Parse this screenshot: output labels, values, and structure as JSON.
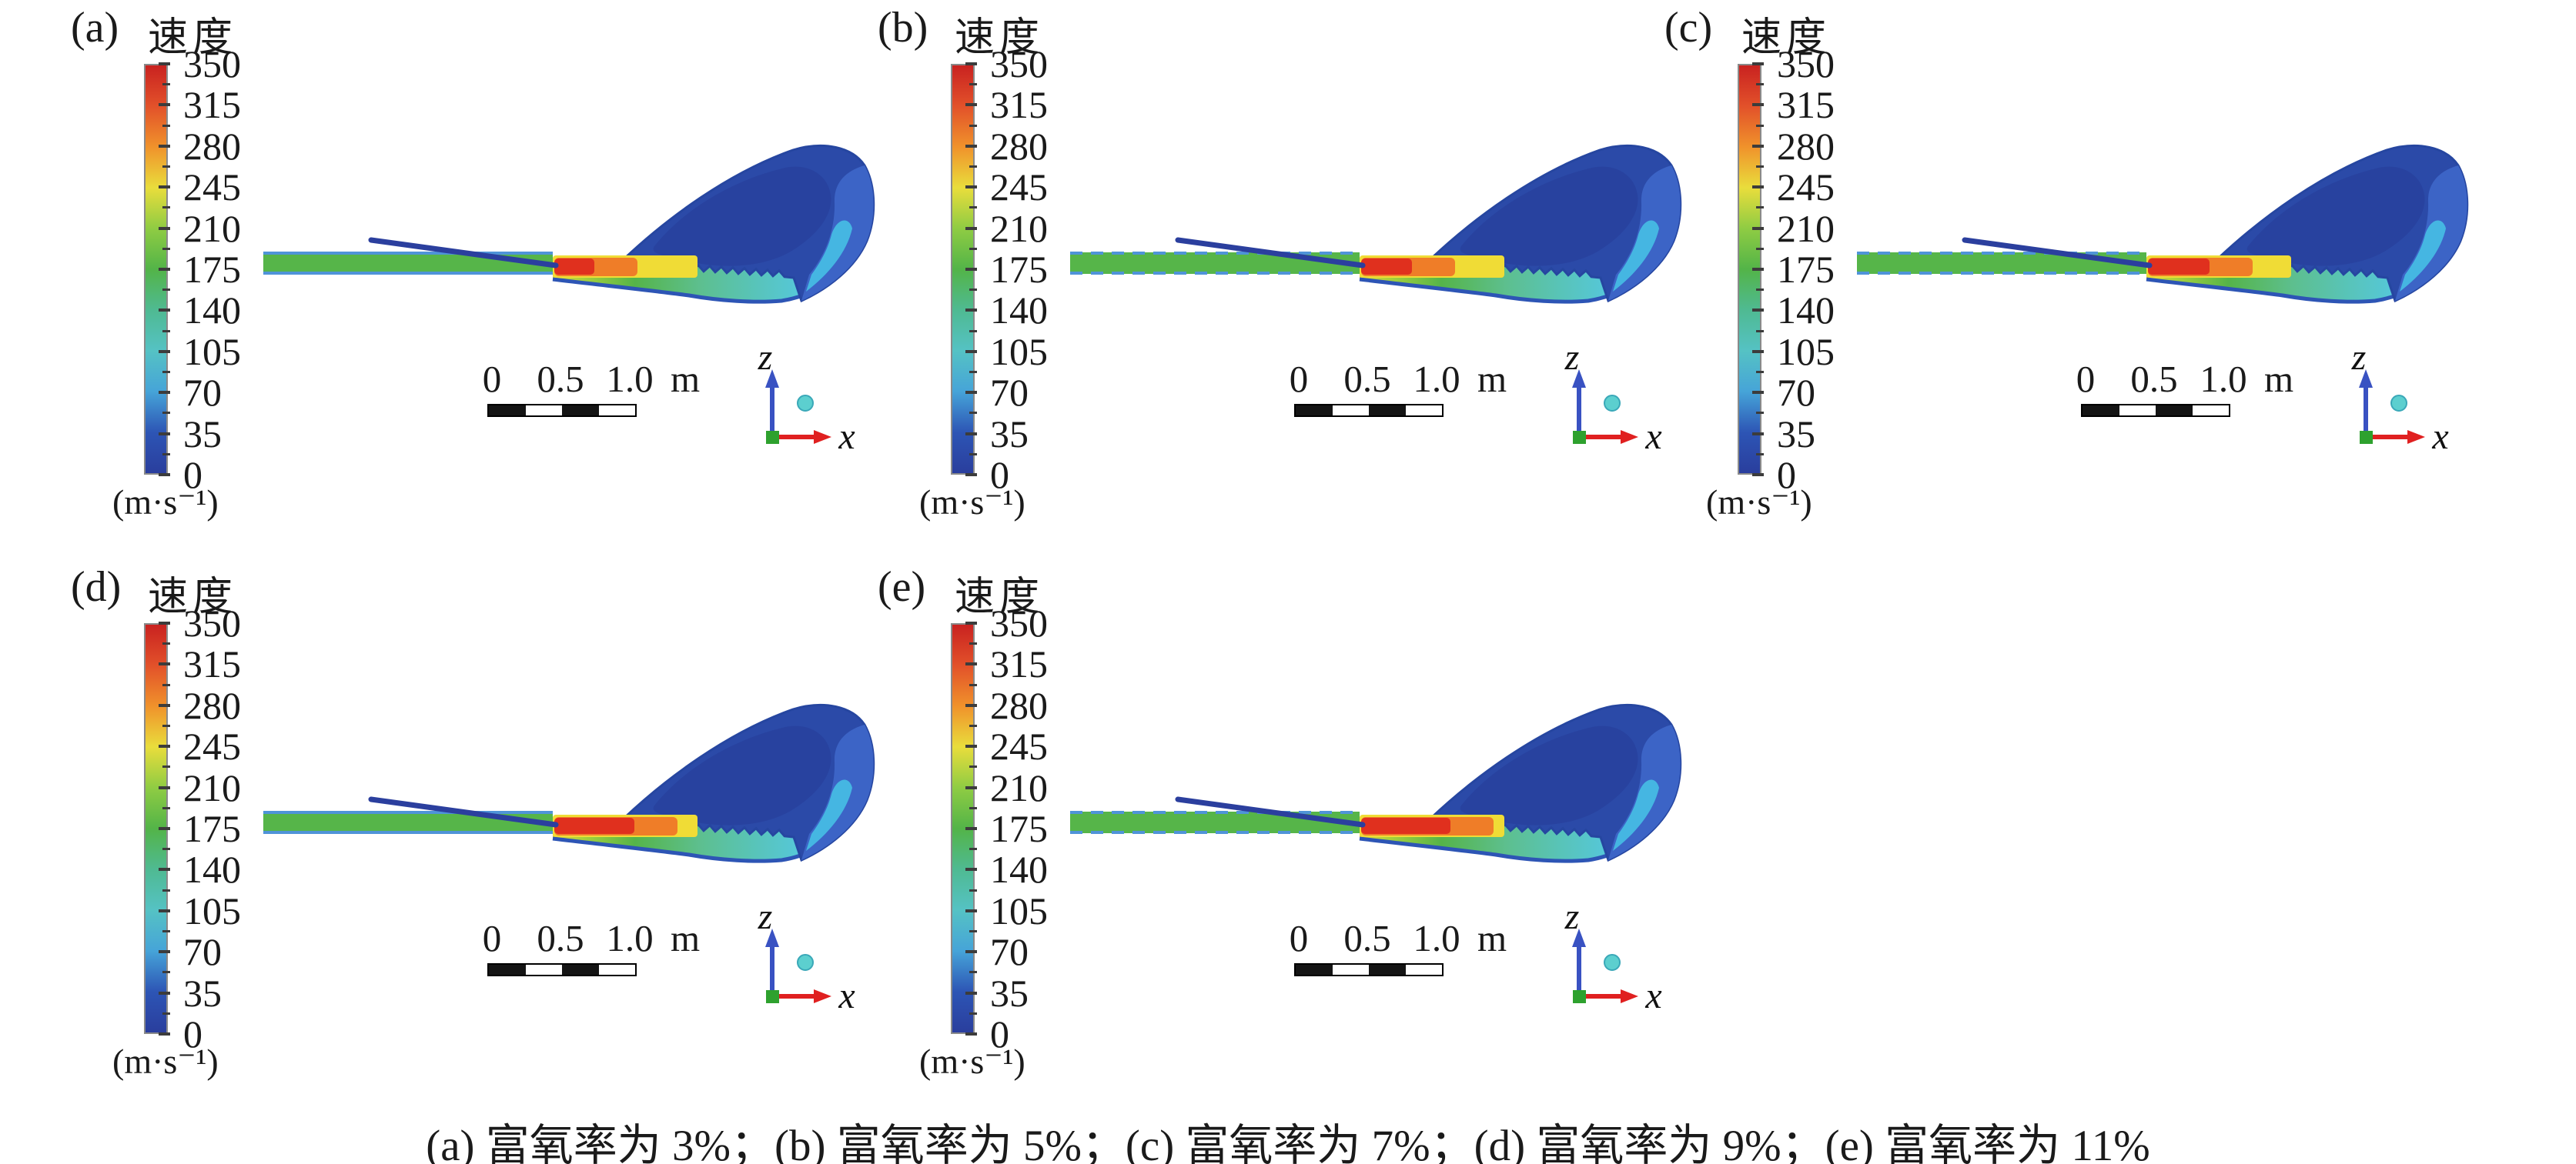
{
  "figure": {
    "caption": "(a) 富氧率为 3%；(b) 富氧率为 5%；(c) 富氧率为 7%；(d) 富氧率为 9%；(e) 富氧率为 11%",
    "panels": [
      {
        "id": "a",
        "label": "(a)",
        "title": "速度",
        "oxygen_rate": "3%"
      },
      {
        "id": "b",
        "label": "(b)",
        "title": "速度",
        "oxygen_rate": "5%"
      },
      {
        "id": "c",
        "label": "(c)",
        "title": "速度",
        "oxygen_rate": "7%"
      },
      {
        "id": "d",
        "label": "(d)",
        "title": "速度",
        "oxygen_rate": "9%"
      },
      {
        "id": "e",
        "label": "(e)",
        "title": "速度",
        "oxygen_rate": "11%"
      }
    ],
    "colorbar": {
      "title": "速度",
      "unit": "(m·s⁻¹)",
      "ticks": [
        "350",
        "315",
        "280",
        "245",
        "210",
        "175",
        "140",
        "105",
        "70",
        "35",
        "0"
      ],
      "gradient": [
        "#c92220",
        "#e2512a",
        "#f0922b",
        "#e9dd3c",
        "#8fcc43",
        "#53b448",
        "#4fba92",
        "#55c2c4",
        "#46a4d8",
        "#2d55b5",
        "#2a3e9d"
      ]
    },
    "scale_bar": {
      "labels": [
        "0",
        "0.5",
        "1.0",
        "m"
      ]
    },
    "axes": {
      "vertical_label": "z",
      "horizontal_label": "x"
    },
    "colors": {
      "jet_green": "#56b549",
      "jet_outline_blue": "#4f94d8",
      "lance_blue": "#2b3f9e",
      "nozzle_red": "#e0301e",
      "nozzle_orange": "#ef7d28",
      "nozzle_yellow": "#f0dc36",
      "plume_dark_blue": "#2b4aa8",
      "plume_navy": "#28429f",
      "plume_mid_blue": "#3c64c6",
      "plume_cyan": "#45b6e2",
      "fan_edge_blue": "#2d55b5",
      "axis_z_blue": "#3952c2",
      "axis_x_red": "#e02020",
      "origin_green": "#2ea12e",
      "marker_cyan": "#5ccfcf"
    }
  },
  "chart_data": {
    "type": "heatmap",
    "title": "速度",
    "unit": "m·s⁻¹",
    "value_range": [
      0,
      350
    ],
    "colorbar_ticks": [
      350,
      315,
      280,
      245,
      210,
      175,
      140,
      105,
      70,
      35,
      0
    ],
    "colorbar_tick_step": 35,
    "legend_position": "left-of-each-panel",
    "scale_bar": {
      "ticks": [
        0,
        0.5,
        1.0
      ],
      "unit": "m",
      "length_m": 1.0
    },
    "axes": {
      "horizontal": "x",
      "vertical": "z"
    },
    "panels": [
      {
        "label": "(a)",
        "oxygen_enrichment": "3%",
        "description": "velocity contour of supersonic oxygen jet"
      },
      {
        "label": "(b)",
        "oxygen_enrichment": "5%",
        "description": "velocity contour of supersonic oxygen jet"
      },
      {
        "label": "(c)",
        "oxygen_enrichment": "7%",
        "description": "velocity contour of supersonic oxygen jet"
      },
      {
        "label": "(d)",
        "oxygen_enrichment": "9%",
        "description": "velocity contour of supersonic oxygen jet"
      },
      {
        "label": "(e)",
        "oxygen_enrichment": "11%",
        "description": "velocity contour of supersonic oxygen jet"
      }
    ]
  }
}
